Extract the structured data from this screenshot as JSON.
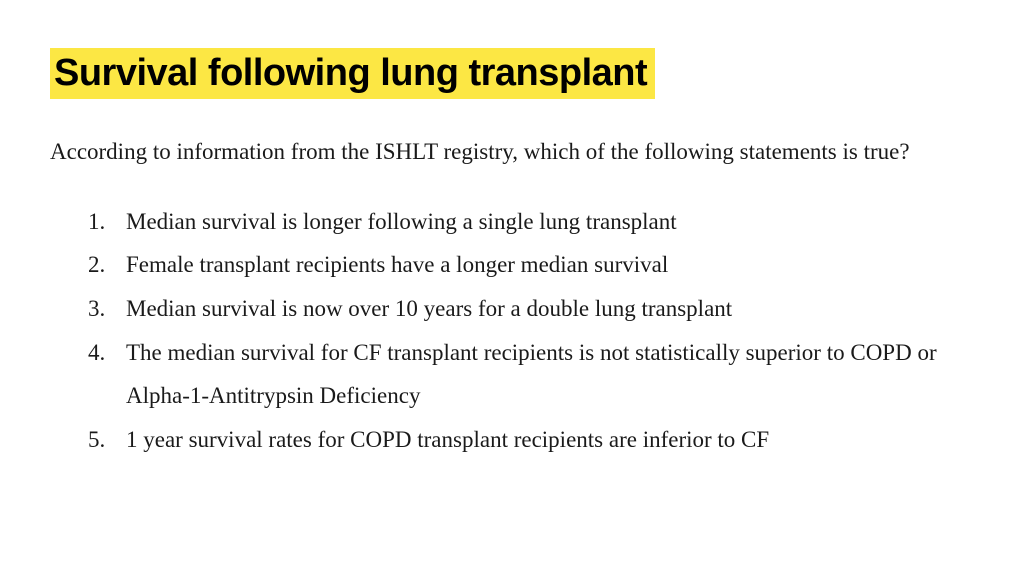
{
  "title": "Survival following lung transplant",
  "question": "According to information from the ISHLT registry, which of the following statements is true?",
  "options": [
    "Median survival is longer following a single lung transplant",
    "Female transplant recipients have a longer median survival",
    "Median survival is now over 10 years for a double lung transplant",
    "The median survival for CF transplant recipients is not statistically superior to COPD or Alpha-1-Antitrypsin Deficiency",
    "1 year survival rates for COPD transplant recipients are inferior to CF"
  ],
  "colors": {
    "highlight": "#fce744",
    "background": "#ffffff",
    "text": "#1a1a1a"
  },
  "typography": {
    "title_fontsize": 38,
    "title_weight": 700,
    "body_fontsize": 23,
    "title_family": "condensed sans-serif",
    "body_family": "serif"
  }
}
